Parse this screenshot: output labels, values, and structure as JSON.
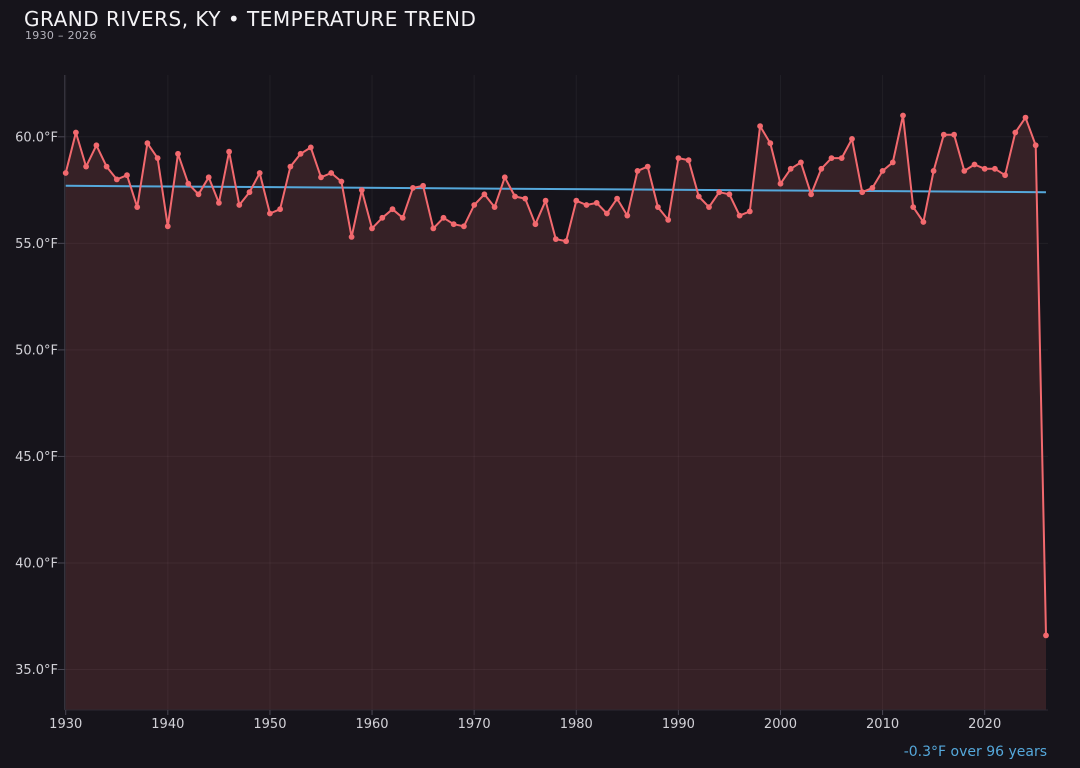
{
  "header": {
    "title": "GRAND RIVERS, KY • TEMPERATURE TREND",
    "subtitle": "1930 – 2026"
  },
  "annotation": {
    "trend_label": "-0.3°F over 96 years"
  },
  "colors": {
    "background": "#16141b",
    "line": "#f2696e",
    "marker": "#f2696e",
    "area_fill": "#f2696e",
    "area_opacity": 0.15,
    "trend_line": "#55a8db",
    "grid": "rgba(255,255,255,0.05)",
    "spine": "#3c3945",
    "tick_mark": "#4a4753",
    "tick_label": "#d2d1d7",
    "title_text": "#f4f3f6",
    "subtitle_text": "#b4b3bc",
    "annotation_text": "#55a8db"
  },
  "chart_data": {
    "type": "line",
    "title": "GRAND RIVERS, KY • TEMPERATURE TREND",
    "subtitle": "1930 – 2026",
    "xlabel": "",
    "ylabel": "",
    "grid": true,
    "legend": false,
    "marker": "circle",
    "years": {
      "start": 1930,
      "end": 2026,
      "step": 1
    },
    "series": [
      {
        "name": "Annual mean temperature (°F)",
        "values": [
          58.3,
          60.2,
          58.6,
          59.6,
          58.6,
          58.0,
          58.2,
          56.7,
          59.7,
          59.0,
          55.8,
          59.2,
          57.8,
          57.3,
          58.1,
          56.9,
          59.3,
          56.8,
          57.4,
          58.3,
          56.4,
          56.6,
          58.6,
          59.2,
          59.5,
          58.1,
          58.3,
          57.9,
          55.3,
          57.5,
          55.7,
          56.2,
          56.6,
          56.2,
          57.6,
          57.7,
          55.7,
          56.2,
          55.9,
          55.8,
          56.8,
          57.3,
          56.7,
          58.1,
          57.2,
          57.1,
          55.9,
          57.0,
          55.2,
          55.1,
          57.0,
          56.8,
          56.9,
          56.4,
          57.1,
          56.3,
          58.4,
          58.6,
          56.7,
          56.1,
          59.0,
          58.9,
          57.2,
          56.7,
          57.4,
          57.3,
          56.3,
          56.5,
          60.5,
          59.7,
          57.8,
          58.5,
          58.8,
          57.3,
          58.5,
          59.0,
          59.0,
          59.9,
          57.4,
          57.6,
          58.4,
          58.8,
          61.0,
          56.7,
          56.0,
          58.4,
          60.1,
          60.1,
          58.4,
          58.7,
          58.5,
          58.5,
          58.2,
          60.2,
          60.9,
          59.6,
          36.6
        ]
      }
    ],
    "trend": {
      "start_f": 57.7,
      "end_f": 57.4,
      "change_f": -0.3,
      "span_years": 96,
      "label": "-0.3°F over 96 years"
    },
    "xlim": [
      1929.9,
      2026.2
    ],
    "ylim": [
      33.1,
      62.9
    ],
    "xticks": {
      "values": [
        1930,
        1940,
        1950,
        1960,
        1970,
        1980,
        1990,
        2000,
        2010,
        2020
      ],
      "labels": [
        "1930",
        "1940",
        "1950",
        "1960",
        "1970",
        "1980",
        "1990",
        "2000",
        "2010",
        "2020"
      ]
    },
    "yticks": {
      "values": [
        60,
        55,
        50,
        45,
        40,
        35
      ],
      "labels": [
        "60.0°F",
        "55.0°F",
        "50.0°F",
        "45.0°F",
        "40.0°F",
        "35.0°F"
      ]
    }
  }
}
